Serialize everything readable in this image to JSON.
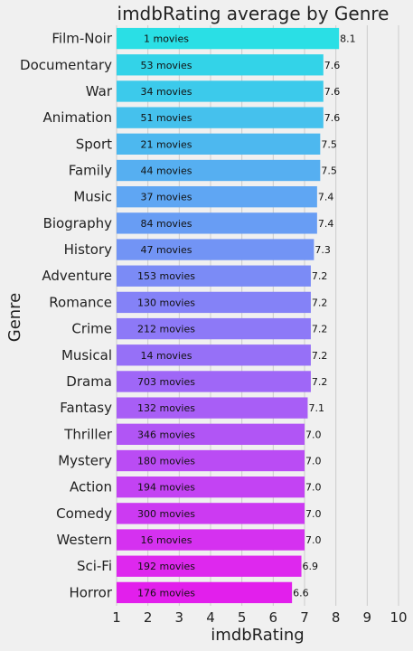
{
  "chart_data": {
    "type": "bar",
    "orientation": "horizontal",
    "title": "imdbRating average by Genre",
    "xlabel": "imdbRating",
    "ylabel": "Genre",
    "xlim": [
      1,
      10
    ],
    "xticks": [
      1,
      2,
      3,
      4,
      5,
      6,
      7,
      8,
      9,
      10
    ],
    "grid": "vertical",
    "categories": [
      "Film-Noir",
      "Documentary",
      "War",
      "Animation",
      "Sport",
      "Family",
      "Music",
      "Biography",
      "History",
      "Adventure",
      "Romance",
      "Crime",
      "Musical",
      "Drama",
      "Fantasy",
      "Thriller",
      "Mystery",
      "Action",
      "Comedy",
      "Western",
      "Sci-Fi",
      "Horror"
    ],
    "values": [
      8.1,
      7.6,
      7.6,
      7.6,
      7.5,
      7.5,
      7.4,
      7.4,
      7.3,
      7.2,
      7.2,
      7.2,
      7.2,
      7.2,
      7.1,
      7.0,
      7.0,
      7.0,
      7.0,
      7.0,
      6.9,
      6.6
    ],
    "value_labels": [
      "8.1",
      "7.6",
      "7.6",
      "7.6",
      "7.5",
      "7.5",
      "7.4",
      "7.4",
      "7.3",
      "7.2",
      "7.2",
      "7.2",
      "7.2",
      "7.2",
      "7.1",
      "7.0",
      "7.0",
      "7.0",
      "7.0",
      "7.0",
      "6.9",
      "6.6"
    ],
    "count_labels": [
      "1 movies",
      "53 movies",
      "34 movies",
      "51 movies",
      "21 movies",
      "44 movies",
      "37 movies",
      "84 movies",
      "47 movies",
      "153 movies",
      "130 movies",
      "212 movies",
      "14 movies",
      "703 movies",
      "132 movies",
      "346 movies",
      "180 movies",
      "194 movies",
      "300 movies",
      "16 movies",
      "192 movies",
      "176 movies"
    ],
    "colormap": "cool",
    "colors": [
      "#2adfe5",
      "#33d3e8",
      "#3ccaeb",
      "#45c1ed",
      "#4db8ef",
      "#56aff1",
      "#5fa6f3",
      "#689df4",
      "#7294f5",
      "#7b8bf6",
      "#8482f7",
      "#8d79f7",
      "#9670f7",
      "#9f67f7",
      "#a85ef6",
      "#b155f5",
      "#ba4cf4",
      "#c343f3",
      "#cc3af2",
      "#d531f0",
      "#de28ee",
      "#e21fec"
    ]
  }
}
